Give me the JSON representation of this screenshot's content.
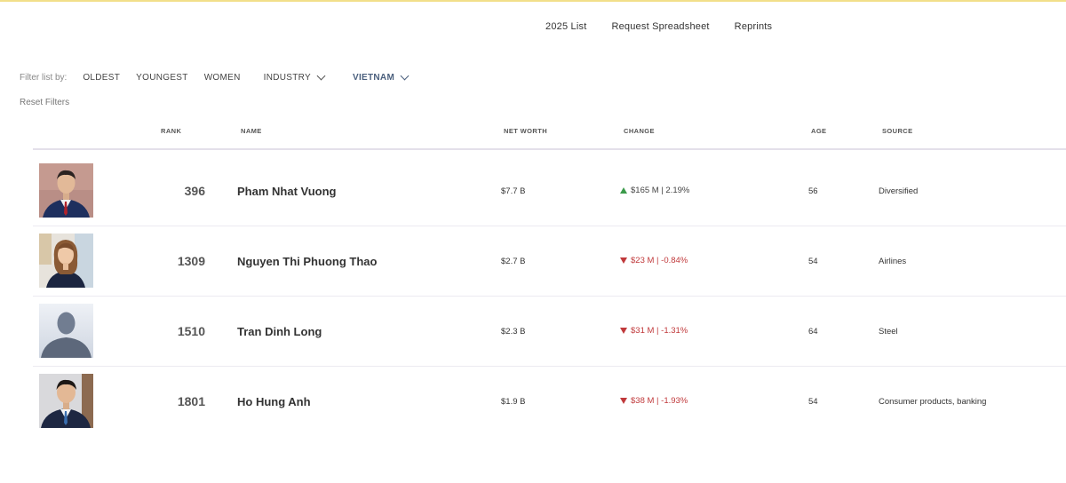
{
  "nav": {
    "links": [
      "2025 List",
      "Request Spreadsheet",
      "Reprints"
    ]
  },
  "filters": {
    "label": "Filter list by:",
    "oldest": "OLDEST",
    "youngest": "YOUNGEST",
    "women": "WOMEN",
    "industry": "INDUSTRY",
    "country": "VIETNAM",
    "reset": "Reset Filters"
  },
  "table": {
    "headers": {
      "rank": "RANK",
      "name": "NAME",
      "net_worth": "NET WORTH",
      "change": "CHANGE",
      "age": "AGE",
      "source": "SOURCE"
    },
    "rows": [
      {
        "rank": "396",
        "name": "Pham Nhat Vuong",
        "net_worth": "$7.7 B",
        "change": "$165 M | 2.19%",
        "direction": "up",
        "age": "56",
        "source": "Diversified",
        "photo": "portrait-man-suit"
      },
      {
        "rank": "1309",
        "name": "Nguyen Thi Phuong Thao",
        "net_worth": "$2.7 B",
        "change": "$23 M | -0.84%",
        "direction": "down",
        "age": "54",
        "source": "Airlines",
        "photo": "portrait-woman"
      },
      {
        "rank": "1510",
        "name": "Tran Dinh Long",
        "net_worth": "$2.3 B",
        "change": "$31 M | -1.31%",
        "direction": "down",
        "age": "64",
        "source": "Steel",
        "photo": "placeholder-silhouette"
      },
      {
        "rank": "1801",
        "name": "Ho Hung Anh",
        "net_worth": "$1.9 B",
        "change": "$38 M | -1.93%",
        "direction": "down",
        "age": "54",
        "source": "Consumer products, banking",
        "photo": "portrait-man-suit"
      }
    ]
  },
  "colors": {
    "accent_bar": "#f2df8a",
    "active_filter": "#4a5f7d",
    "positive": "#3b9a4a",
    "negative": "#c0393b"
  }
}
